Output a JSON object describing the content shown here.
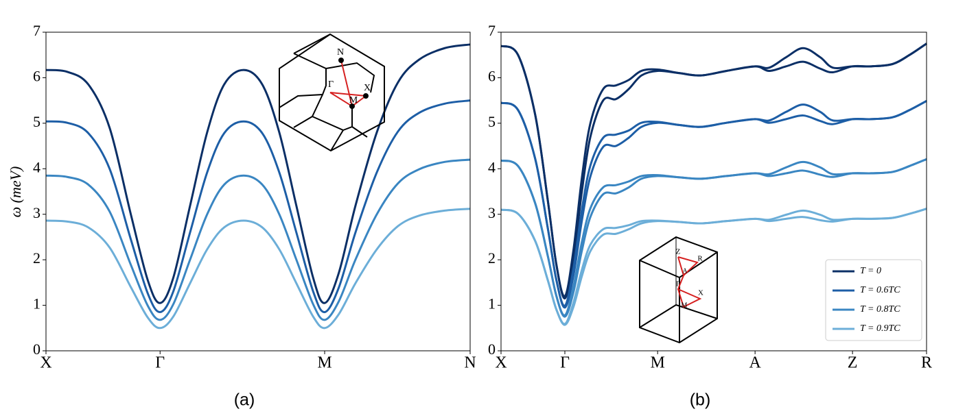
{
  "chart_data": [
    {
      "type": "line",
      "caption": "(a)",
      "y_label": "ω (meV)",
      "x": [
        0,
        0.5,
        1.0,
        1.5,
        2.0,
        2.4,
        2.69,
        3.0,
        3.4,
        3.8,
        4.2,
        4.66,
        5.1,
        5.5,
        5.9,
        6.3,
        6.57,
        6.9,
        7.3,
        7.8,
        8.3,
        8.8,
        9.4,
        10
      ],
      "xlim": [
        0,
        10
      ],
      "xticks": [
        {
          "value": 0,
          "label": "X"
        },
        {
          "value": 2.69,
          "label": "Γ"
        },
        {
          "value": 6.57,
          "label": "M"
        },
        {
          "value": 10,
          "label": "N"
        }
      ],
      "ylim": [
        0,
        7
      ],
      "yticks": [
        0,
        1,
        2,
        3,
        4,
        5,
        6,
        7
      ],
      "inset_labels": [
        "N",
        "Γ",
        "X",
        "M"
      ],
      "series": [
        {
          "color": "#0b2f66",
          "values": [
            6.17,
            6.13,
            5.85,
            4.9,
            3.0,
            1.55,
            1.05,
            1.6,
            3.2,
            4.8,
            5.85,
            6.17,
            5.85,
            4.8,
            3.2,
            1.6,
            1.05,
            1.7,
            3.2,
            4.8,
            5.9,
            6.4,
            6.65,
            6.73
          ]
        },
        {
          "color": "#1d5ea6",
          "values": [
            5.04,
            5.01,
            4.78,
            4.0,
            2.45,
            1.26,
            0.85,
            1.3,
            2.61,
            3.92,
            4.78,
            5.04,
            4.78,
            3.92,
            2.61,
            1.3,
            0.85,
            1.38,
            2.61,
            3.92,
            4.82,
            5.23,
            5.43,
            5.5
          ]
        },
        {
          "color": "#3a86c2",
          "values": [
            3.85,
            3.82,
            3.65,
            3.06,
            1.89,
            0.99,
            0.68,
            1.02,
            2.01,
            3.0,
            3.65,
            3.85,
            3.65,
            3.0,
            2.01,
            1.02,
            0.68,
            1.08,
            2.01,
            3.0,
            3.68,
            3.99,
            4.15,
            4.2
          ]
        },
        {
          "color": "#6caed8",
          "values": [
            2.86,
            2.84,
            2.71,
            2.27,
            1.4,
            0.73,
            0.5,
            0.75,
            1.49,
            2.23,
            2.71,
            2.86,
            2.71,
            2.23,
            1.49,
            0.75,
            0.5,
            0.8,
            1.49,
            2.23,
            2.74,
            2.97,
            3.08,
            3.12
          ]
        }
      ]
    },
    {
      "type": "line",
      "caption": "(b)",
      "legend": "lower right",
      "x": [
        0,
        0.4,
        0.8,
        1.1,
        1.3,
        1.5,
        1.7,
        1.9,
        2.1,
        2.4,
        2.7,
        3.0,
        3.3,
        3.68,
        4.2,
        4.7,
        5.3,
        5.97,
        6.3,
        6.7,
        7.1,
        7.5,
        7.8,
        8.26,
        8.7,
        9.2,
        9.6,
        10
      ],
      "xlim": [
        0,
        10
      ],
      "xticks": [
        {
          "value": 0,
          "label": "X"
        },
        {
          "value": 1.5,
          "label": "Γ"
        },
        {
          "value": 3.68,
          "label": "M"
        },
        {
          "value": 5.97,
          "label": "A"
        },
        {
          "value": 8.26,
          "label": "Z"
        },
        {
          "value": 10,
          "label": "R"
        }
      ],
      "ylim": [
        0,
        7
      ],
      "yticks": [
        0,
        1,
        2,
        3,
        4,
        5,
        6,
        7
      ],
      "inset_labels": [
        "Z",
        "R",
        "A",
        "Γ",
        "X",
        "M"
      ],
      "series": [
        {
          "name": "T = 0",
          "color": "#0b2f66",
          "values": [
            6.7,
            6.5,
            5.2,
            3.3,
            1.9,
            1.2,
            2.2,
            3.8,
            5.0,
            5.75,
            5.83,
            5.95,
            6.15,
            6.18,
            6.1,
            6.05,
            6.15,
            6.25,
            6.22,
            6.45,
            6.65,
            6.45,
            6.22,
            6.25,
            6.25,
            6.3,
            6.5,
            6.75
          ],
          "values_lower": [
            6.7,
            6.5,
            5.2,
            3.3,
            1.9,
            1.15,
            2.0,
            3.5,
            4.7,
            5.5,
            5.53,
            5.75,
            6.05,
            6.15,
            6.1,
            6.05,
            6.15,
            6.25,
            6.15,
            6.25,
            6.35,
            6.2,
            6.12,
            6.25,
            6.25,
            6.3,
            6.5,
            6.75
          ]
        },
        {
          "name": "T = 0.6TC",
          "color": "#1d5ea6",
          "values": [
            5.45,
            5.29,
            4.23,
            2.69,
            1.56,
            0.99,
            1.8,
            3.1,
            4.07,
            4.68,
            4.75,
            4.84,
            5.01,
            5.03,
            4.96,
            4.92,
            5.01,
            5.09,
            5.06,
            5.25,
            5.41,
            5.25,
            5.06,
            5.09,
            5.09,
            5.13,
            5.29,
            5.49
          ],
          "values_lower": [
            5.45,
            5.29,
            4.23,
            2.69,
            1.56,
            0.95,
            1.64,
            2.86,
            3.83,
            4.48,
            4.5,
            4.68,
            4.92,
            5.01,
            4.96,
            4.92,
            5.01,
            5.09,
            5.01,
            5.09,
            5.17,
            5.05,
            4.98,
            5.09,
            5.09,
            5.13,
            5.29,
            5.49
          ]
        },
        {
          "name": "T = 0.8TC",
          "color": "#3a86c2",
          "values": [
            4.18,
            4.06,
            3.25,
            2.08,
            1.21,
            0.78,
            1.4,
            2.39,
            3.13,
            3.59,
            3.64,
            3.72,
            3.84,
            3.86,
            3.81,
            3.78,
            3.84,
            3.9,
            3.88,
            4.03,
            4.15,
            4.03,
            3.88,
            3.9,
            3.9,
            3.93,
            4.06,
            4.21
          ],
          "values_lower": [
            4.18,
            4.06,
            3.25,
            2.08,
            1.21,
            0.75,
            1.28,
            2.2,
            2.94,
            3.44,
            3.46,
            3.59,
            3.78,
            3.84,
            3.81,
            3.78,
            3.84,
            3.9,
            3.84,
            3.9,
            3.96,
            3.87,
            3.82,
            3.9,
            3.9,
            3.93,
            4.06,
            4.21
          ]
        },
        {
          "name": "T = 0.9TC",
          "color": "#6caed8",
          "values": [
            3.1,
            3.01,
            2.42,
            1.55,
            0.91,
            0.59,
            1.05,
            1.78,
            2.33,
            2.67,
            2.7,
            2.76,
            2.85,
            2.86,
            2.83,
            2.8,
            2.85,
            2.9,
            2.88,
            2.99,
            3.08,
            2.99,
            2.88,
            2.9,
            2.9,
            2.92,
            3.01,
            3.12
          ],
          "values_lower": [
            3.1,
            3.01,
            2.42,
            1.55,
            0.91,
            0.57,
            0.96,
            1.64,
            2.19,
            2.55,
            2.57,
            2.67,
            2.8,
            2.85,
            2.83,
            2.8,
            2.85,
            2.9,
            2.85,
            2.9,
            2.94,
            2.87,
            2.84,
            2.9,
            2.9,
            2.92,
            3.01,
            3.12
          ]
        }
      ]
    }
  ]
}
